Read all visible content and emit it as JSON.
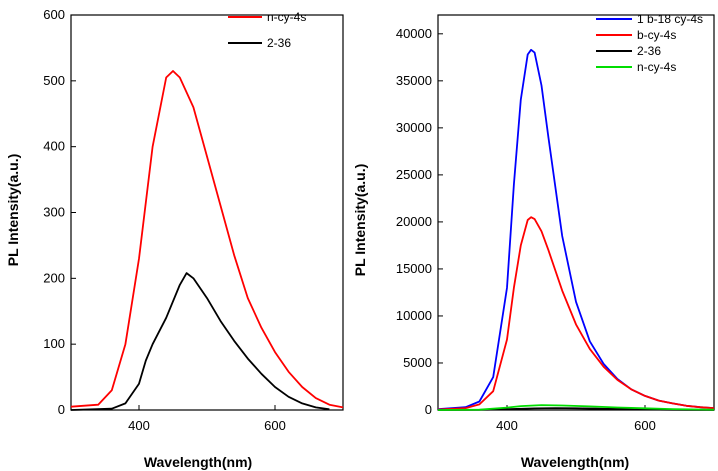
{
  "chart_data": [
    {
      "type": "line",
      "xlabel": "Wavelength(nm)",
      "ylabel": "PL Intensity(a.u.)",
      "xlim": [
        300,
        700
      ],
      "ylim": [
        0,
        600
      ],
      "xticks": [
        400,
        600
      ],
      "yticks": [
        0,
        100,
        200,
        300,
        400,
        500,
        600
      ],
      "legend_position": "top-right",
      "series": [
        {
          "name": "n-cy-4s",
          "color": "#ff0000",
          "x": [
            300,
            340,
            360,
            380,
            400,
            420,
            440,
            450,
            460,
            480,
            500,
            520,
            540,
            560,
            580,
            600,
            620,
            640,
            660,
            680,
            700
          ],
          "y": [
            5,
            8,
            30,
            100,
            230,
            400,
            505,
            515,
            505,
            460,
            385,
            310,
            235,
            170,
            125,
            88,
            58,
            35,
            18,
            8,
            4
          ]
        },
        {
          "name": "2-36",
          "color": "#000000",
          "x": [
            300,
            360,
            380,
            400,
            410,
            420,
            440,
            460,
            470,
            480,
            500,
            520,
            540,
            560,
            580,
            600,
            620,
            640,
            660,
            680
          ],
          "y": [
            0,
            2,
            10,
            40,
            75,
            100,
            140,
            190,
            208,
            200,
            170,
            135,
            105,
            78,
            55,
            35,
            20,
            10,
            4,
            1
          ]
        }
      ]
    },
    {
      "type": "line",
      "xlabel": "Wavelength(nm)",
      "ylabel": "PL Intensity(a.u.)",
      "xlim": [
        300,
        700
      ],
      "ylim": [
        0,
        42000
      ],
      "xticks": [
        400,
        600
      ],
      "yticks": [
        0,
        5000,
        10000,
        15000,
        20000,
        25000,
        30000,
        35000,
        40000
      ],
      "legend_position": "top-right",
      "series": [
        {
          "name": "1 b-18 cy-4s",
          "color": "#0000ff",
          "x": [
            300,
            340,
            360,
            380,
            400,
            410,
            420,
            430,
            435,
            440,
            450,
            460,
            480,
            500,
            520,
            540,
            560,
            580,
            600,
            620,
            640,
            660,
            680,
            700
          ],
          "y": [
            100,
            300,
            900,
            3500,
            13000,
            24000,
            33000,
            37800,
            38300,
            38000,
            34500,
            29000,
            18500,
            11500,
            7300,
            4900,
            3300,
            2200,
            1500,
            1000,
            700,
            450,
            300,
            200
          ]
        },
        {
          "name": "b-cy-4s",
          "color": "#ff0000",
          "x": [
            300,
            340,
            360,
            380,
            400,
            410,
            420,
            430,
            435,
            440,
            450,
            460,
            480,
            500,
            520,
            540,
            560,
            580,
            600,
            620,
            640,
            660,
            680,
            700
          ],
          "y": [
            50,
            200,
            600,
            2000,
            7500,
            13000,
            17500,
            20200,
            20500,
            20300,
            19000,
            17000,
            12700,
            9100,
            6500,
            4600,
            3200,
            2200,
            1500,
            1000,
            700,
            450,
            300,
            200
          ]
        },
        {
          "name": "2-36",
          "color": "#000000",
          "x": [
            300,
            360,
            400,
            440,
            470,
            500,
            540,
            580,
            620,
            660,
            700
          ],
          "y": [
            0,
            10,
            80,
            170,
            200,
            180,
            130,
            80,
            40,
            15,
            5
          ]
        },
        {
          "name": "n-cy-4s",
          "color": "#00dd00",
          "x": [
            300,
            360,
            400,
            420,
            450,
            480,
            520,
            560,
            600,
            640,
            680,
            700
          ],
          "y": [
            0,
            30,
            250,
            420,
            520,
            480,
            380,
            270,
            180,
            100,
            50,
            30
          ]
        }
      ]
    }
  ]
}
